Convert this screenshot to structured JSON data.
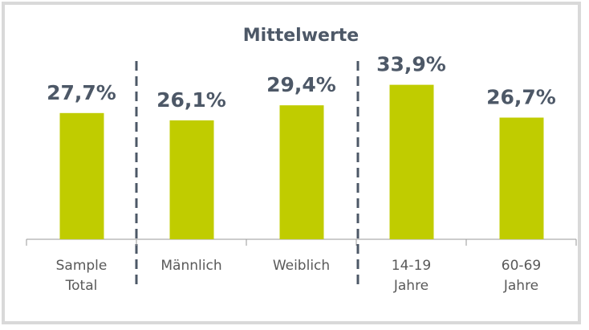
{
  "chart_data": {
    "type": "bar",
    "title": "Mittelwerte",
    "categories": [
      "Sample Total",
      "Männlich",
      "Weiblich",
      "14-19 Jahre",
      "60-69 Jahre"
    ],
    "values": [
      27.7,
      26.1,
      29.4,
      33.9,
      26.7
    ],
    "value_labels": [
      "27,7%",
      "26,1%",
      "29,4%",
      "33,9%",
      "26,7%"
    ],
    "color": "#c0cc00",
    "ylim": [
      0,
      40
    ]
  }
}
